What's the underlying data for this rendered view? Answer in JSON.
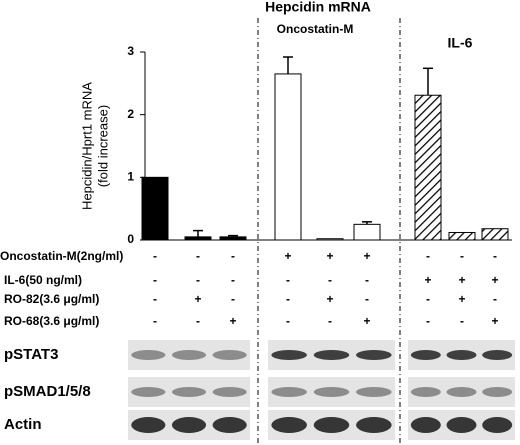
{
  "chart_data": {
    "type": "bar",
    "title": "Hepcidin mRNA",
    "group_labels": [
      "Oncostatin-M",
      "IL-6"
    ],
    "y_label": [
      "Hepcidin/Hprt1 mRNA",
      "(fold increase)"
    ],
    "categories": [
      null,
      null,
      null,
      null,
      null,
      null,
      null,
      null,
      null
    ],
    "values": [
      1.0,
      0.05,
      0.05,
      2.65,
      0.02,
      0.25,
      2.31,
      0.12,
      0.18
    ],
    "errors": [
      null,
      0.1,
      0.02,
      0.27,
      null,
      0.04,
      0.43,
      null,
      null
    ],
    "styles": [
      "solid",
      "solid",
      "solid",
      "open",
      "open",
      "open",
      "hatched",
      "hatched",
      "hatched"
    ],
    "ylim": [
      0,
      3
    ],
    "yticks": [
      0,
      1,
      2,
      3
    ],
    "table": [
      {
        "label": "Oncostatin-M(2ng/ml)",
        "marks": [
          "-",
          "-",
          "-",
          "+",
          "+",
          "+",
          "-",
          "-",
          "-"
        ]
      },
      {
        "label": "IL-6(50 ng/ml)",
        "marks": [
          "-",
          "-",
          "-",
          "-",
          "-",
          "-",
          "+",
          "+",
          "+"
        ]
      },
      {
        "label": "RO-82(3.6 μg/ml)",
        "marks": [
          "-",
          "+",
          "-",
          "-",
          "+",
          "-",
          "-",
          "+",
          "-"
        ]
      },
      {
        "label": "RO-68(3.6 μg/ml)",
        "marks": [
          "-",
          "-",
          "+",
          "-",
          "-",
          "+",
          "-",
          "-",
          "+"
        ]
      }
    ],
    "blots": [
      "pSTAT3",
      "pSMAD1/5/8",
      "Actin"
    ]
  }
}
